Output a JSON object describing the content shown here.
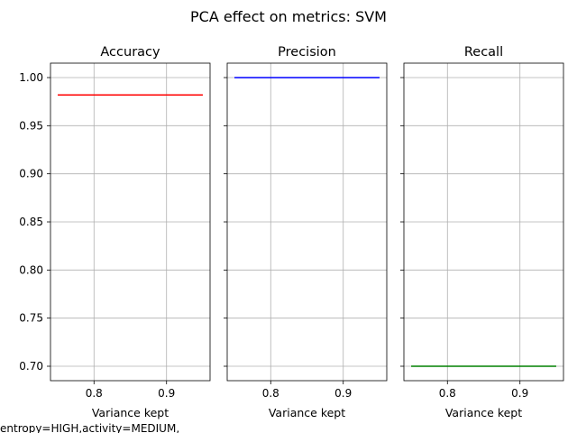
{
  "chart_data": {
    "type": "line",
    "suptitle": "PCA effect on metrics: SVM",
    "footnote": "entropy=HIGH,activity=MEDIUM,",
    "shared_y": {
      "ylim": [
        0.685,
        1.015
      ],
      "ticks": [
        0.7,
        0.75,
        0.8,
        0.85,
        0.9,
        0.95,
        1.0
      ],
      "tick_labels": [
        "0.70",
        "0.75",
        "0.80",
        "0.85",
        "0.90",
        "0.95",
        "1.00"
      ]
    },
    "grid": true,
    "subplots": [
      {
        "title": "Accuracy",
        "xlabel": "Variance kept",
        "xlim": [
          0.74,
          0.96
        ],
        "xticks": [
          0.8,
          0.9
        ],
        "xtick_labels": [
          "0.8",
          "0.9"
        ],
        "series": [
          {
            "color": "#ff0000",
            "x": [
              0.75,
              0.95
            ],
            "y": [
              0.982,
              0.982
            ]
          }
        ]
      },
      {
        "title": "Precision",
        "xlabel": "Variance kept",
        "xlim": [
          0.74,
          0.96
        ],
        "xticks": [
          0.8,
          0.9
        ],
        "xtick_labels": [
          "0.8",
          "0.9"
        ],
        "series": [
          {
            "color": "#0000ff",
            "x": [
              0.75,
              0.95
            ],
            "y": [
              1.0,
              1.0
            ]
          }
        ]
      },
      {
        "title": "Recall",
        "xlabel": "Variance kept",
        "xlim": [
          0.74,
          0.96
        ],
        "xticks": [
          0.8,
          0.9
        ],
        "xtick_labels": [
          "0.8",
          "0.9"
        ],
        "series": [
          {
            "color": "#008000",
            "x": [
              0.75,
              0.95
            ],
            "y": [
              0.7,
              0.7
            ]
          }
        ]
      }
    ]
  }
}
